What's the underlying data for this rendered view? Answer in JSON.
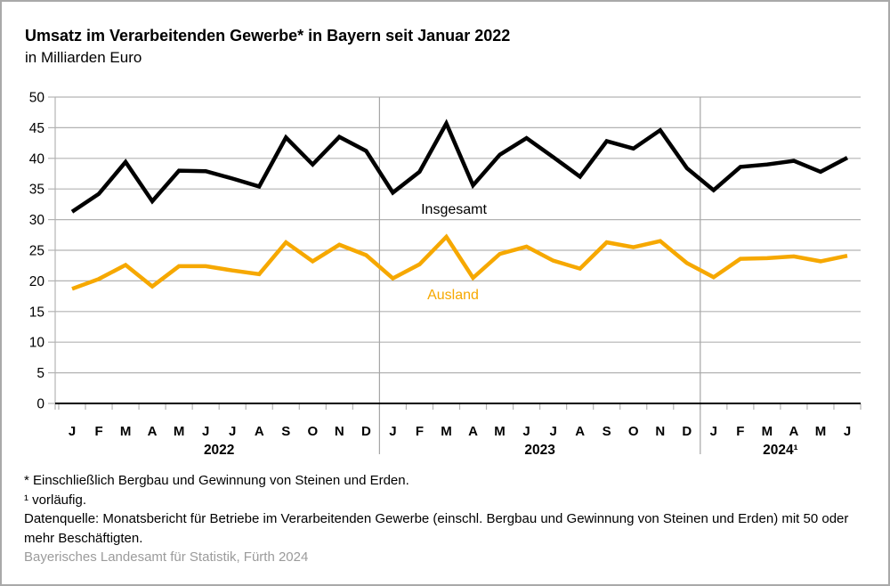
{
  "figure": {
    "title": "Umsatz im Verarbeitenden Gewerbe* in Bayern seit Januar 2022",
    "subtitle": "in Milliarden Euro",
    "footnotes": [
      "* Einschließlich Bergbau und Gewinnung von Steinen und Erden.",
      "¹ vorläufig.",
      "Datenquelle: Monatsbericht für Betriebe im Verarbeitenden Gewerbe (einschl. Bergbau und Gewinnung von Steinen und Erden) mit 50 oder mehr Beschäftigten."
    ],
    "source": "Bayerisches Landesamt für Statistik, Fürth 2024"
  },
  "chart_data": {
    "type": "line",
    "title": "Umsatz im Verarbeitenden Gewerbe* in Bayern seit Januar 2022",
    "subtitle": "in Milliarden Euro",
    "grid": "horizontal",
    "legend": "inline-labels",
    "x_axis": {
      "month_labels": [
        "J",
        "F",
        "M",
        "A",
        "M",
        "J",
        "J",
        "A",
        "S",
        "O",
        "N",
        "D",
        "J",
        "F",
        "M",
        "A",
        "M",
        "J",
        "J",
        "A",
        "S",
        "O",
        "N",
        "D",
        "J",
        "F",
        "M",
        "A",
        "M",
        "J"
      ],
      "year_groups": [
        {
          "label": "2022",
          "months": 12
        },
        {
          "label": "2023",
          "months": 12
        },
        {
          "label": "2024¹",
          "months": 6
        }
      ]
    },
    "y_axis": {
      "min": 0,
      "max": 50,
      "tick_step": 5,
      "tick_labels": [
        "0",
        "5",
        "10",
        "15",
        "20",
        "25",
        "30",
        "35",
        "40",
        "45",
        "50"
      ]
    },
    "series": [
      {
        "name": "Insgesamt",
        "color": "#000000",
        "values": [
          31.3,
          34.2,
          39.4,
          33.0,
          38.0,
          37.9,
          36.7,
          35.4,
          43.4,
          39.0,
          43.5,
          41.2,
          34.4,
          37.8,
          45.7,
          35.6,
          40.6,
          43.3,
          40.2,
          37.0,
          42.8,
          41.6,
          44.6,
          38.4,
          34.8,
          38.6,
          39.0,
          39.6,
          37.8,
          40.1
        ]
      },
      {
        "name": "Ausland",
        "color": "#F6A800",
        "values": [
          18.7,
          20.3,
          22.6,
          19.1,
          22.4,
          22.4,
          21.7,
          21.1,
          26.3,
          23.2,
          25.9,
          24.2,
          20.4,
          22.7,
          27.2,
          20.5,
          24.4,
          25.6,
          23.3,
          22.0,
          26.3,
          25.5,
          26.5,
          22.9,
          20.6,
          23.6,
          23.7,
          24.0,
          23.2,
          24.1
        ]
      }
    ]
  }
}
